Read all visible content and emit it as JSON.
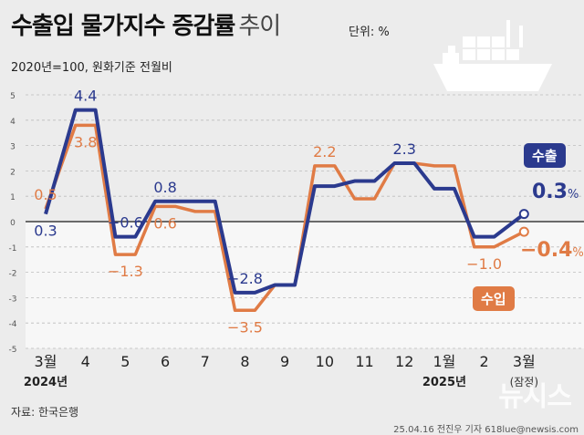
{
  "title_bold": "수출입 물가지수 증감률",
  "title_light": "추이",
  "unit_label": "단위: %",
  "subtitle": "2020년=100, 원화기준 전월비",
  "source": "자료: 한국은행",
  "credit": "25.04.16 전진우 기자 618lue@newsis.com",
  "watermark": "뉴시스",
  "icons": [
    "cargo-ship-icon"
  ],
  "colors": {
    "export": "#2b3a8e",
    "import": "#e07b45",
    "zero_line": "#1a1a1a",
    "grid": "#bdbdbd"
  },
  "legend_pills": {
    "export": "수출",
    "import": "수입"
  },
  "latest_labels": {
    "export_value": "0.3",
    "import_value": "−0.4",
    "pct": "%"
  },
  "chart_data": {
    "type": "line",
    "categories": [
      "3월",
      "4",
      "5",
      "6",
      "7",
      "8",
      "9",
      "10",
      "11",
      "12",
      "1월",
      "2",
      "3월"
    ],
    "year_labels": [
      {
        "category_index": 0,
        "text": "2024년"
      },
      {
        "category_index": 10,
        "text": "2025년"
      }
    ],
    "category_note": {
      "category_index": 12,
      "text": "(잠정)"
    },
    "ylim": [
      -5,
      5
    ],
    "yticks": [
      5,
      4,
      3,
      2,
      1,
      0,
      -1,
      -2,
      -3,
      -4,
      -5
    ],
    "points_per_category": 2,
    "series": [
      {
        "name": "수출",
        "key": "export",
        "values": [
          0.3,
          4.4,
          -0.6,
          0.8,
          0.8,
          -2.8,
          -2.5,
          1.4,
          1.6,
          2.3,
          1.3,
          -0.6,
          0.3
        ]
      },
      {
        "name": "수입",
        "key": "import",
        "values": [
          0.5,
          3.8,
          -1.3,
          0.6,
          0.4,
          -3.5,
          -2.5,
          2.2,
          0.9,
          2.3,
          2.2,
          -1.0,
          -0.4
        ]
      }
    ],
    "data_labels": [
      {
        "series": "export",
        "index": 0,
        "text": "0.3"
      },
      {
        "series": "export",
        "index": 1,
        "text": "4.4"
      },
      {
        "series": "export",
        "index": 2,
        "text": "−0.6"
      },
      {
        "series": "export",
        "index": 3,
        "text": "0.8"
      },
      {
        "series": "export",
        "index": 5,
        "text": "−2.8"
      },
      {
        "series": "export",
        "index": 9,
        "text": "2.3"
      },
      {
        "series": "import",
        "index": 0,
        "text": "0.5"
      },
      {
        "series": "import",
        "index": 1,
        "text": "3.8"
      },
      {
        "series": "import",
        "index": 2,
        "text": "−1.3"
      },
      {
        "series": "import",
        "index": 3,
        "text": "0.6"
      },
      {
        "series": "import",
        "index": 5,
        "text": "−3.5"
      },
      {
        "series": "import",
        "index": 7,
        "text": "2.2"
      },
      {
        "series": "import",
        "index": 11,
        "text": "−1.0"
      }
    ],
    "grid": true
  }
}
